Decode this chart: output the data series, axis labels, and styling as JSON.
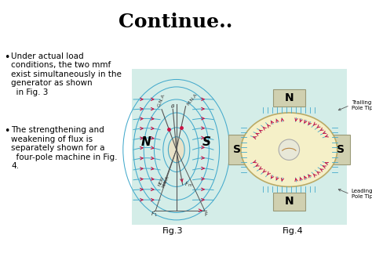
{
  "title": "Continue..",
  "title_fontsize": 18,
  "title_font": "serif",
  "bg_color": "#ffffff",
  "bullet_points": [
    "Under actual load\nconditions, the two mmf\nexist simultaneously in the\ngenerator as shown\n  in Fig. 3",
    "The strengthening and\nweakening of flux is\nseparately shown for a\n  four-pole machine in Fig.\n4."
  ],
  "fig3_label": "Fig.3",
  "fig4_label": "Fig.4",
  "diagram_bg": "#d4ede8",
  "text_color": "#000000",
  "bullet_fontsize": 7.5,
  "label_fontsize": 8,
  "arrow_color": "#cc1144",
  "line_color": "#44aacc",
  "rotor_color": "#f5f0c8",
  "pole_fill": "#d0d0b0",
  "inner_fill": "#e8e8d8"
}
